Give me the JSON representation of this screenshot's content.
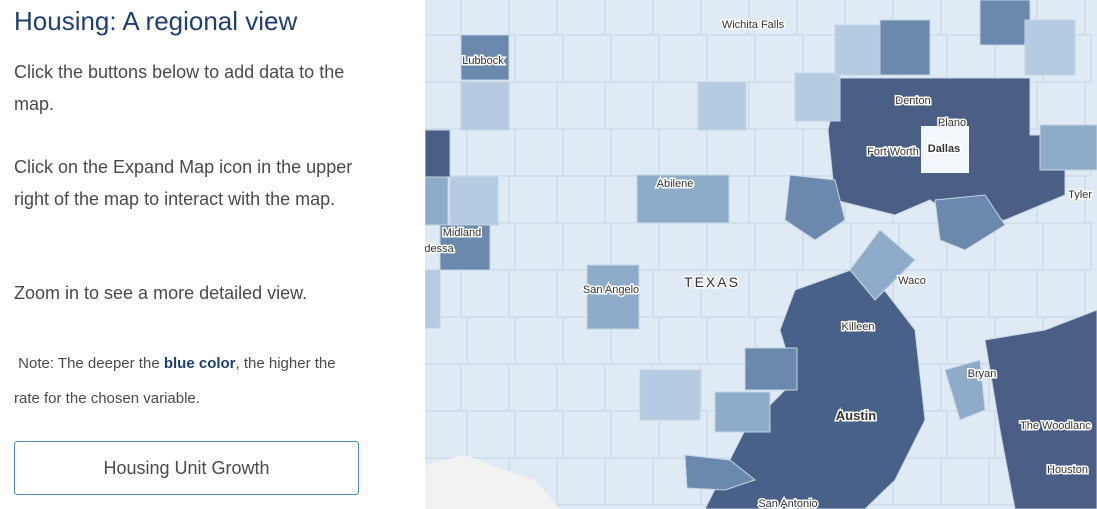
{
  "panel": {
    "title": "Housing:  A regional view",
    "paragraphs": [
      "Click the buttons below to add data to the map.",
      "Click on the Expand Map icon in the upper right of the map to interact with the map.",
      "Zoom in to see a more detailed view."
    ],
    "note": {
      "prefix": "Note:  The deeper the ",
      "emphasis": "blue color",
      "suffix": ", the higher the rate for the chosen variable."
    },
    "button": "Housing Unit Growth"
  },
  "map": {
    "state_label": "TEXAS",
    "places": [
      "Wichita Falls",
      "Lubbock",
      "Denton",
      "Plano",
      "Fort Worth",
      "Dallas",
      "Abilene",
      "Tyler",
      "Midland",
      "dessa",
      "Waco",
      "San Angelo",
      "Killeen",
      "Bryan",
      "Austin",
      "The Woodlanc",
      "Houston",
      "San Antonio"
    ]
  }
}
